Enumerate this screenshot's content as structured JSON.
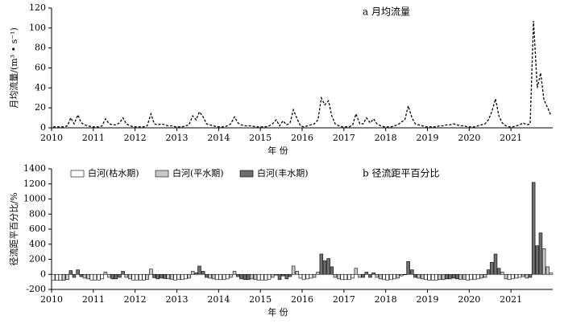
{
  "chart_data": [
    {
      "type": "line",
      "title": "a 月均流量",
      "x_label": "年 份",
      "y_label": "月均流量/(m³ • s⁻¹)",
      "color": "#000000",
      "dashed": true,
      "xlim": [
        2010,
        2022
      ],
      "xticks": [
        2010,
        2011,
        2012,
        2013,
        2014,
        2015,
        2016,
        2017,
        2018,
        2019,
        2020,
        2021
      ],
      "ylim": [
        0,
        120
      ],
      "yticks": [
        0,
        20,
        40,
        60,
        80,
        100,
        120
      ],
      "x": [
        2010.04,
        2010.13,
        2010.21,
        2010.29,
        2010.38,
        2010.46,
        2010.54,
        2010.63,
        2010.71,
        2010.79,
        2010.88,
        2010.96,
        2011.04,
        2011.13,
        2011.21,
        2011.29,
        2011.38,
        2011.46,
        2011.54,
        2011.63,
        2011.71,
        2011.79,
        2011.88,
        2011.96,
        2012.04,
        2012.13,
        2012.21,
        2012.29,
        2012.38,
        2012.46,
        2012.54,
        2012.63,
        2012.71,
        2012.79,
        2012.88,
        2012.96,
        2013.04,
        2013.13,
        2013.21,
        2013.29,
        2013.38,
        2013.46,
        2013.54,
        2013.63,
        2013.71,
        2013.79,
        2013.88,
        2013.96,
        2014.04,
        2014.13,
        2014.21,
        2014.29,
        2014.38,
        2014.46,
        2014.54,
        2014.63,
        2014.71,
        2014.79,
        2014.88,
        2014.96,
        2015.04,
        2015.13,
        2015.21,
        2015.29,
        2015.38,
        2015.46,
        2015.54,
        2015.63,
        2015.71,
        2015.79,
        2015.88,
        2015.96,
        2016.04,
        2016.13,
        2016.21,
        2016.29,
        2016.38,
        2016.46,
        2016.54,
        2016.63,
        2016.71,
        2016.79,
        2016.88,
        2016.96,
        2017.04,
        2017.13,
        2017.21,
        2017.29,
        2017.38,
        2017.46,
        2017.54,
        2017.63,
        2017.71,
        2017.79,
        2017.88,
        2017.96,
        2018.04,
        2018.13,
        2018.21,
        2018.29,
        2018.38,
        2018.46,
        2018.54,
        2018.63,
        2018.71,
        2018.79,
        2018.88,
        2018.96,
        2019.04,
        2019.13,
        2019.21,
        2019.29,
        2019.38,
        2019.46,
        2019.54,
        2019.63,
        2019.71,
        2019.79,
        2019.88,
        2019.96,
        2020.04,
        2020.13,
        2020.21,
        2020.29,
        2020.38,
        2020.46,
        2020.54,
        2020.63,
        2020.71,
        2020.79,
        2020.88,
        2020.96,
        2021.04,
        2021.13,
        2021.21,
        2021.29,
        2021.38,
        2021.46,
        2021.54,
        2021.63,
        2021.71,
        2021.79,
        2021.88,
        2021.96
      ],
      "values": [
        1,
        1,
        1,
        1,
        2,
        10,
        4,
        13,
        5,
        3,
        2,
        1,
        1,
        1,
        2,
        9,
        4,
        3,
        3,
        5,
        10,
        4,
        2,
        1,
        1,
        1,
        1,
        2,
        14,
        4,
        3,
        4,
        3,
        2,
        2,
        1,
        1,
        1,
        2,
        3,
        12,
        8,
        16,
        11,
        4,
        3,
        2,
        1,
        1,
        1,
        2,
        4,
        11,
        5,
        3,
        2,
        2,
        2,
        1,
        1,
        1,
        1,
        2,
        4,
        8,
        2,
        7,
        3,
        5,
        18,
        9,
        2,
        1,
        2,
        3,
        4,
        8,
        30,
        23,
        27,
        12,
        4,
        2,
        1,
        1,
        1,
        3,
        14,
        4,
        4,
        10,
        5,
        9,
        4,
        2,
        1,
        1,
        1,
        2,
        3,
        6,
        8,
        22,
        10,
        4,
        3,
        2,
        1,
        1,
        1,
        1,
        2,
        2,
        3,
        3,
        4,
        3,
        2,
        2,
        1,
        1,
        1,
        2,
        3,
        4,
        8,
        16,
        29,
        12,
        5,
        2,
        1,
        1,
        2,
        3,
        5,
        3,
        4,
        107,
        40,
        55,
        28,
        20,
        12
      ]
    },
    {
      "type": "bar",
      "title": "b 径流距平百分比",
      "x_label": "年 份",
      "y_label": "径流距平百分比/%",
      "legend": "upper left",
      "xlim": [
        2010,
        2022
      ],
      "xticks": [
        2010,
        2011,
        2012,
        2013,
        2014,
        2015,
        2016,
        2017,
        2018,
        2019,
        2020,
        2021
      ],
      "ylim": [
        -200,
        1400
      ],
      "yticks": [
        -200,
        0,
        200,
        400,
        600,
        800,
        1000,
        1200,
        1400
      ],
      "x": [
        2010.04,
        2010.13,
        2010.21,
        2010.29,
        2010.38,
        2010.46,
        2010.54,
        2010.63,
        2010.71,
        2010.79,
        2010.88,
        2010.96,
        2011.04,
        2011.13,
        2011.21,
        2011.29,
        2011.38,
        2011.46,
        2011.54,
        2011.63,
        2011.71,
        2011.79,
        2011.88,
        2011.96,
        2012.04,
        2012.13,
        2012.21,
        2012.29,
        2012.38,
        2012.46,
        2012.54,
        2012.63,
        2012.71,
        2012.79,
        2012.88,
        2012.96,
        2013.04,
        2013.13,
        2013.21,
        2013.29,
        2013.38,
        2013.46,
        2013.54,
        2013.63,
        2013.71,
        2013.79,
        2013.88,
        2013.96,
        2014.04,
        2014.13,
        2014.21,
        2014.29,
        2014.38,
        2014.46,
        2014.54,
        2014.63,
        2014.71,
        2014.79,
        2014.88,
        2014.96,
        2015.04,
        2015.13,
        2015.21,
        2015.29,
        2015.38,
        2015.46,
        2015.54,
        2015.63,
        2015.71,
        2015.79,
        2015.88,
        2015.96,
        2016.04,
        2016.13,
        2016.21,
        2016.29,
        2016.38,
        2016.46,
        2016.54,
        2016.63,
        2016.71,
        2016.79,
        2016.88,
        2016.96,
        2017.04,
        2017.13,
        2017.21,
        2017.29,
        2017.38,
        2017.46,
        2017.54,
        2017.63,
        2017.71,
        2017.79,
        2017.88,
        2017.96,
        2018.04,
        2018.13,
        2018.21,
        2018.29,
        2018.38,
        2018.46,
        2018.54,
        2018.63,
        2018.71,
        2018.79,
        2018.88,
        2018.96,
        2019.04,
        2019.13,
        2019.21,
        2019.29,
        2019.38,
        2019.46,
        2019.54,
        2019.63,
        2019.71,
        2019.79,
        2019.88,
        2019.96,
        2020.04,
        2020.13,
        2020.21,
        2020.29,
        2020.38,
        2020.46,
        2020.54,
        2020.63,
        2020.71,
        2020.79,
        2020.88,
        2020.96,
        2021.04,
        2021.13,
        2021.21,
        2021.29,
        2021.38,
        2021.46,
        2021.54,
        2021.63,
        2021.71,
        2021.79,
        2021.88,
        2021.96
      ],
      "series": [
        {
          "name": "白河(枯水期)",
          "color": "#ffffff",
          "values": [
            -80,
            -80,
            -80,
            null,
            null,
            null,
            null,
            null,
            null,
            null,
            null,
            -75,
            -75,
            -75,
            -60,
            null,
            null,
            null,
            null,
            null,
            null,
            null,
            null,
            -75,
            -75,
            -75,
            -75,
            null,
            null,
            null,
            null,
            null,
            null,
            null,
            null,
            -75,
            -70,
            -70,
            -60,
            null,
            null,
            null,
            null,
            null,
            null,
            null,
            null,
            -70,
            -70,
            -70,
            -60,
            null,
            null,
            null,
            null,
            null,
            null,
            null,
            null,
            -75,
            -75,
            -75,
            -65,
            null,
            null,
            null,
            null,
            null,
            null,
            null,
            null,
            -50,
            -70,
            -60,
            -50,
            null,
            null,
            null,
            null,
            null,
            null,
            null,
            null,
            -70,
            -70,
            -70,
            -50,
            null,
            null,
            null,
            null,
            null,
            null,
            null,
            null,
            -70,
            -75,
            -70,
            -60,
            null,
            null,
            null,
            null,
            null,
            null,
            null,
            null,
            -70,
            -75,
            -75,
            -75,
            null,
            null,
            null,
            null,
            null,
            null,
            null,
            null,
            -75,
            -70,
            -70,
            -60,
            null,
            null,
            null,
            null,
            null,
            null,
            null,
            null,
            -70,
            -60,
            -50,
            -40,
            null,
            null,
            null,
            null,
            null,
            null,
            null,
            null,
            20
          ]
        },
        {
          "name": "白河(平水期)",
          "color": "#c8c8c8",
          "values": [
            null,
            null,
            null,
            -80,
            -70,
            null,
            null,
            null,
            null,
            -50,
            -60,
            null,
            null,
            null,
            null,
            30,
            -40,
            null,
            null,
            null,
            null,
            -40,
            -60,
            null,
            null,
            null,
            null,
            -65,
            70,
            null,
            null,
            null,
            null,
            -60,
            -65,
            null,
            null,
            null,
            null,
            -50,
            40,
            null,
            null,
            null,
            null,
            -50,
            -60,
            null,
            null,
            null,
            null,
            -40,
            40,
            null,
            null,
            null,
            null,
            -60,
            -70,
            null,
            null,
            null,
            null,
            -40,
            -10,
            null,
            null,
            null,
            null,
            110,
            40,
            null,
            null,
            null,
            null,
            -40,
            30,
            null,
            null,
            null,
            null,
            -40,
            -60,
            null,
            null,
            null,
            null,
            80,
            -40,
            null,
            null,
            null,
            null,
            -40,
            -60,
            null,
            null,
            null,
            null,
            -50,
            -20,
            null,
            null,
            null,
            null,
            -50,
            -60,
            null,
            null,
            null,
            null,
            -70,
            -70,
            null,
            null,
            null,
            null,
            -65,
            -65,
            null,
            null,
            null,
            null,
            -50,
            -40,
            null,
            null,
            null,
            null,
            30,
            -60,
            null,
            null,
            null,
            null,
            -30,
            -50,
            null,
            null,
            null,
            null,
            340,
            100,
            null
          ]
        },
        {
          "name": "白河(丰水期)",
          "color": "#6e6e6e",
          "values": [
            null,
            null,
            null,
            null,
            null,
            50,
            -40,
            60,
            -30,
            null,
            null,
            null,
            null,
            null,
            null,
            null,
            null,
            -60,
            -60,
            -40,
            40,
            null,
            null,
            null,
            null,
            null,
            null,
            null,
            null,
            -45,
            -60,
            -50,
            -55,
            null,
            null,
            null,
            null,
            null,
            null,
            null,
            null,
            20,
            110,
            40,
            -40,
            null,
            null,
            null,
            null,
            null,
            null,
            null,
            null,
            -30,
            -60,
            -70,
            -70,
            null,
            null,
            null,
            null,
            null,
            null,
            null,
            null,
            -70,
            -20,
            -60,
            -30,
            null,
            null,
            null,
            null,
            null,
            null,
            null,
            null,
            270,
            180,
            210,
            100,
            null,
            null,
            null,
            null,
            null,
            null,
            null,
            null,
            -40,
            30,
            -40,
            20,
            null,
            null,
            null,
            null,
            null,
            null,
            null,
            null,
            0,
            170,
            60,
            -40,
            null,
            null,
            null,
            null,
            null,
            null,
            null,
            null,
            -60,
            -60,
            -50,
            -60,
            null,
            null,
            null,
            null,
            null,
            null,
            null,
            null,
            60,
            160,
            270,
            80,
            null,
            null,
            null,
            null,
            null,
            null,
            null,
            null,
            -40,
            1220,
            380,
            550,
            null,
            null,
            null
          ]
        }
      ]
    }
  ]
}
